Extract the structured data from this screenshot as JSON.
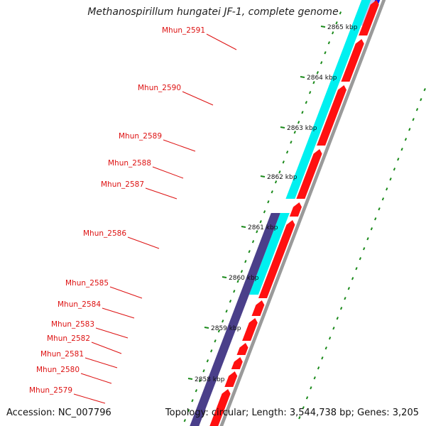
{
  "title": "Methanospirillum hungatei JF-1, complete genome",
  "footer": {
    "accession": "Accession: NC_007796",
    "stats": "Topology: circular; Length: 3,544,738 bp; Genes: 3,205"
  },
  "colors": {
    "gene_label": "#dd1111",
    "red_feature": "#ff1010",
    "cyan_feature": "#00f0f0",
    "navy_feature": "#4a3f8a",
    "blue_feature": "#1515ee",
    "backbone": "#9a9a9a",
    "tick_green": "#1a8a1a"
  },
  "genes": [
    {
      "label": "Mhun_2591"
    },
    {
      "label": "Mhun_2590"
    },
    {
      "label": "Mhun_2589"
    },
    {
      "label": "Mhun_2588"
    },
    {
      "label": "Mhun_2587"
    },
    {
      "label": "Mhun_2586"
    },
    {
      "label": "Mhun_2585"
    },
    {
      "label": "Mhun_2584"
    },
    {
      "label": "Mhun_2583"
    },
    {
      "label": "Mhun_2582"
    },
    {
      "label": "Mhun_2581"
    },
    {
      "label": "Mhun_2580"
    },
    {
      "label": "Mhun_2579"
    }
  ],
  "scale": [
    {
      "label": "2865 kbp"
    },
    {
      "label": "2864 kbp"
    },
    {
      "label": "2863 kbp"
    },
    {
      "label": "2862 kbp"
    },
    {
      "label": "2861 kbp"
    },
    {
      "label": "2860 kbp"
    },
    {
      "label": "2859 kbp"
    },
    {
      "label": "2858 kbp"
    }
  ]
}
